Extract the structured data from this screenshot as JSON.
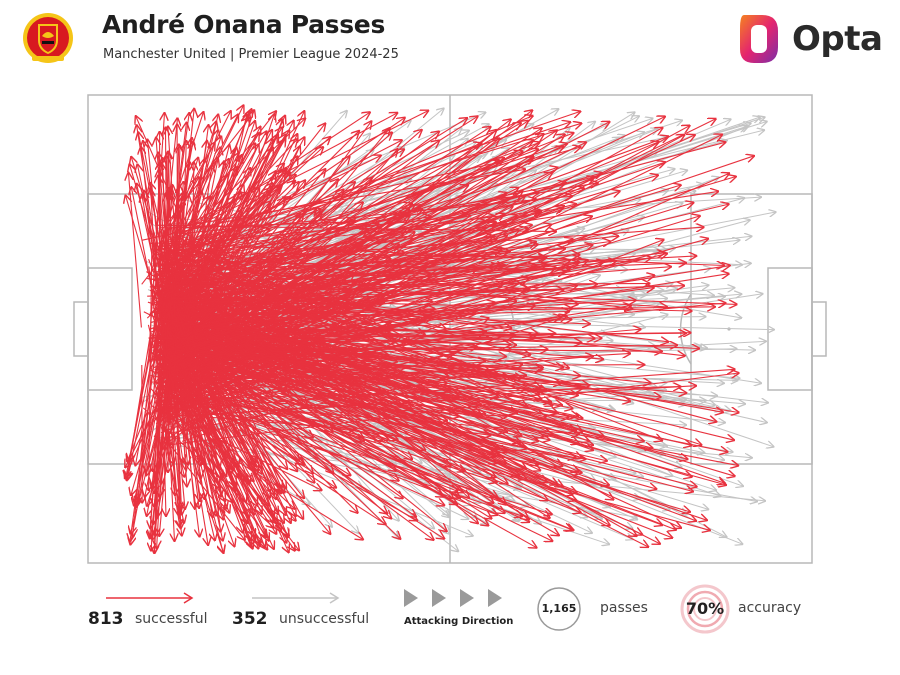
{
  "header": {
    "title": "André Onana Passes",
    "subtitle": "Manchester United | Premier League 2024-25",
    "brand": "Opta",
    "crest_icon": "manchester-united-crest-icon"
  },
  "colors": {
    "successful": "#e8323f",
    "unsuccessful": "#c4c4c4",
    "pitch_lines": "#b8b8b8"
  },
  "legend": {
    "successful_count": "813",
    "successful_label": "successful",
    "unsuccessful_count": "352",
    "unsuccessful_label": "unsuccessful",
    "direction_label": "Attacking Direction",
    "passes_value": "1,165",
    "passes_label": "passes",
    "accuracy_value": "70%",
    "accuracy_label": "accuracy"
  },
  "chart_data": {
    "type": "scatter",
    "title": "André Onana Passes",
    "subtitle": "Manchester United | Premier League 2024-25",
    "xlim": [
      0,
      100
    ],
    "ylim": [
      0,
      100
    ],
    "attacking_direction": "left-to-right",
    "series": [
      {
        "name": "successful",
        "count": 813,
        "representative_passes": [
          {
            "x": 12,
            "y": 50,
            "end_x": 42,
            "end_y": 8
          },
          {
            "x": 10,
            "y": 45,
            "end_x": 60,
            "end_y": 12
          },
          {
            "x": 12,
            "y": 55,
            "end_x": 92,
            "end_y": 13
          },
          {
            "x": 11,
            "y": 60,
            "end_x": 75,
            "end_y": 45
          },
          {
            "x": 12,
            "y": 42,
            "end_x": 88,
            "end_y": 83
          },
          {
            "x": 13,
            "y": 50,
            "end_x": 84,
            "end_y": 91
          },
          {
            "x": 11,
            "y": 65,
            "end_x": 60,
            "end_y": 90
          },
          {
            "x": 10,
            "y": 35,
            "end_x": 30,
            "end_y": 5
          },
          {
            "x": 12,
            "y": 70,
            "end_x": 38,
            "end_y": 95
          },
          {
            "x": 14,
            "y": 48,
            "end_x": 70,
            "end_y": 52
          },
          {
            "x": 12,
            "y": 52,
            "end_x": 68,
            "end_y": 60
          },
          {
            "x": 11,
            "y": 40,
            "end_x": 55,
            "end_y": 35
          }
        ]
      },
      {
        "name": "unsuccessful",
        "count": 352,
        "representative_passes": [
          {
            "x": 11,
            "y": 50,
            "end_x": 95,
            "end_y": 25
          },
          {
            "x": 12,
            "y": 45,
            "end_x": 90,
            "end_y": 31
          },
          {
            "x": 13,
            "y": 55,
            "end_x": 86,
            "end_y": 37
          },
          {
            "x": 12,
            "y": 60,
            "end_x": 80,
            "end_y": 75
          },
          {
            "x": 11,
            "y": 40,
            "end_x": 78,
            "end_y": 5
          },
          {
            "x": 12,
            "y": 65,
            "end_x": 72,
            "end_y": 96
          },
          {
            "x": 10,
            "y": 50,
            "end_x": 65,
            "end_y": 3
          },
          {
            "x": 12,
            "y": 58,
            "end_x": 88,
            "end_y": 70
          }
        ]
      }
    ],
    "legend_placement": "bottom"
  }
}
